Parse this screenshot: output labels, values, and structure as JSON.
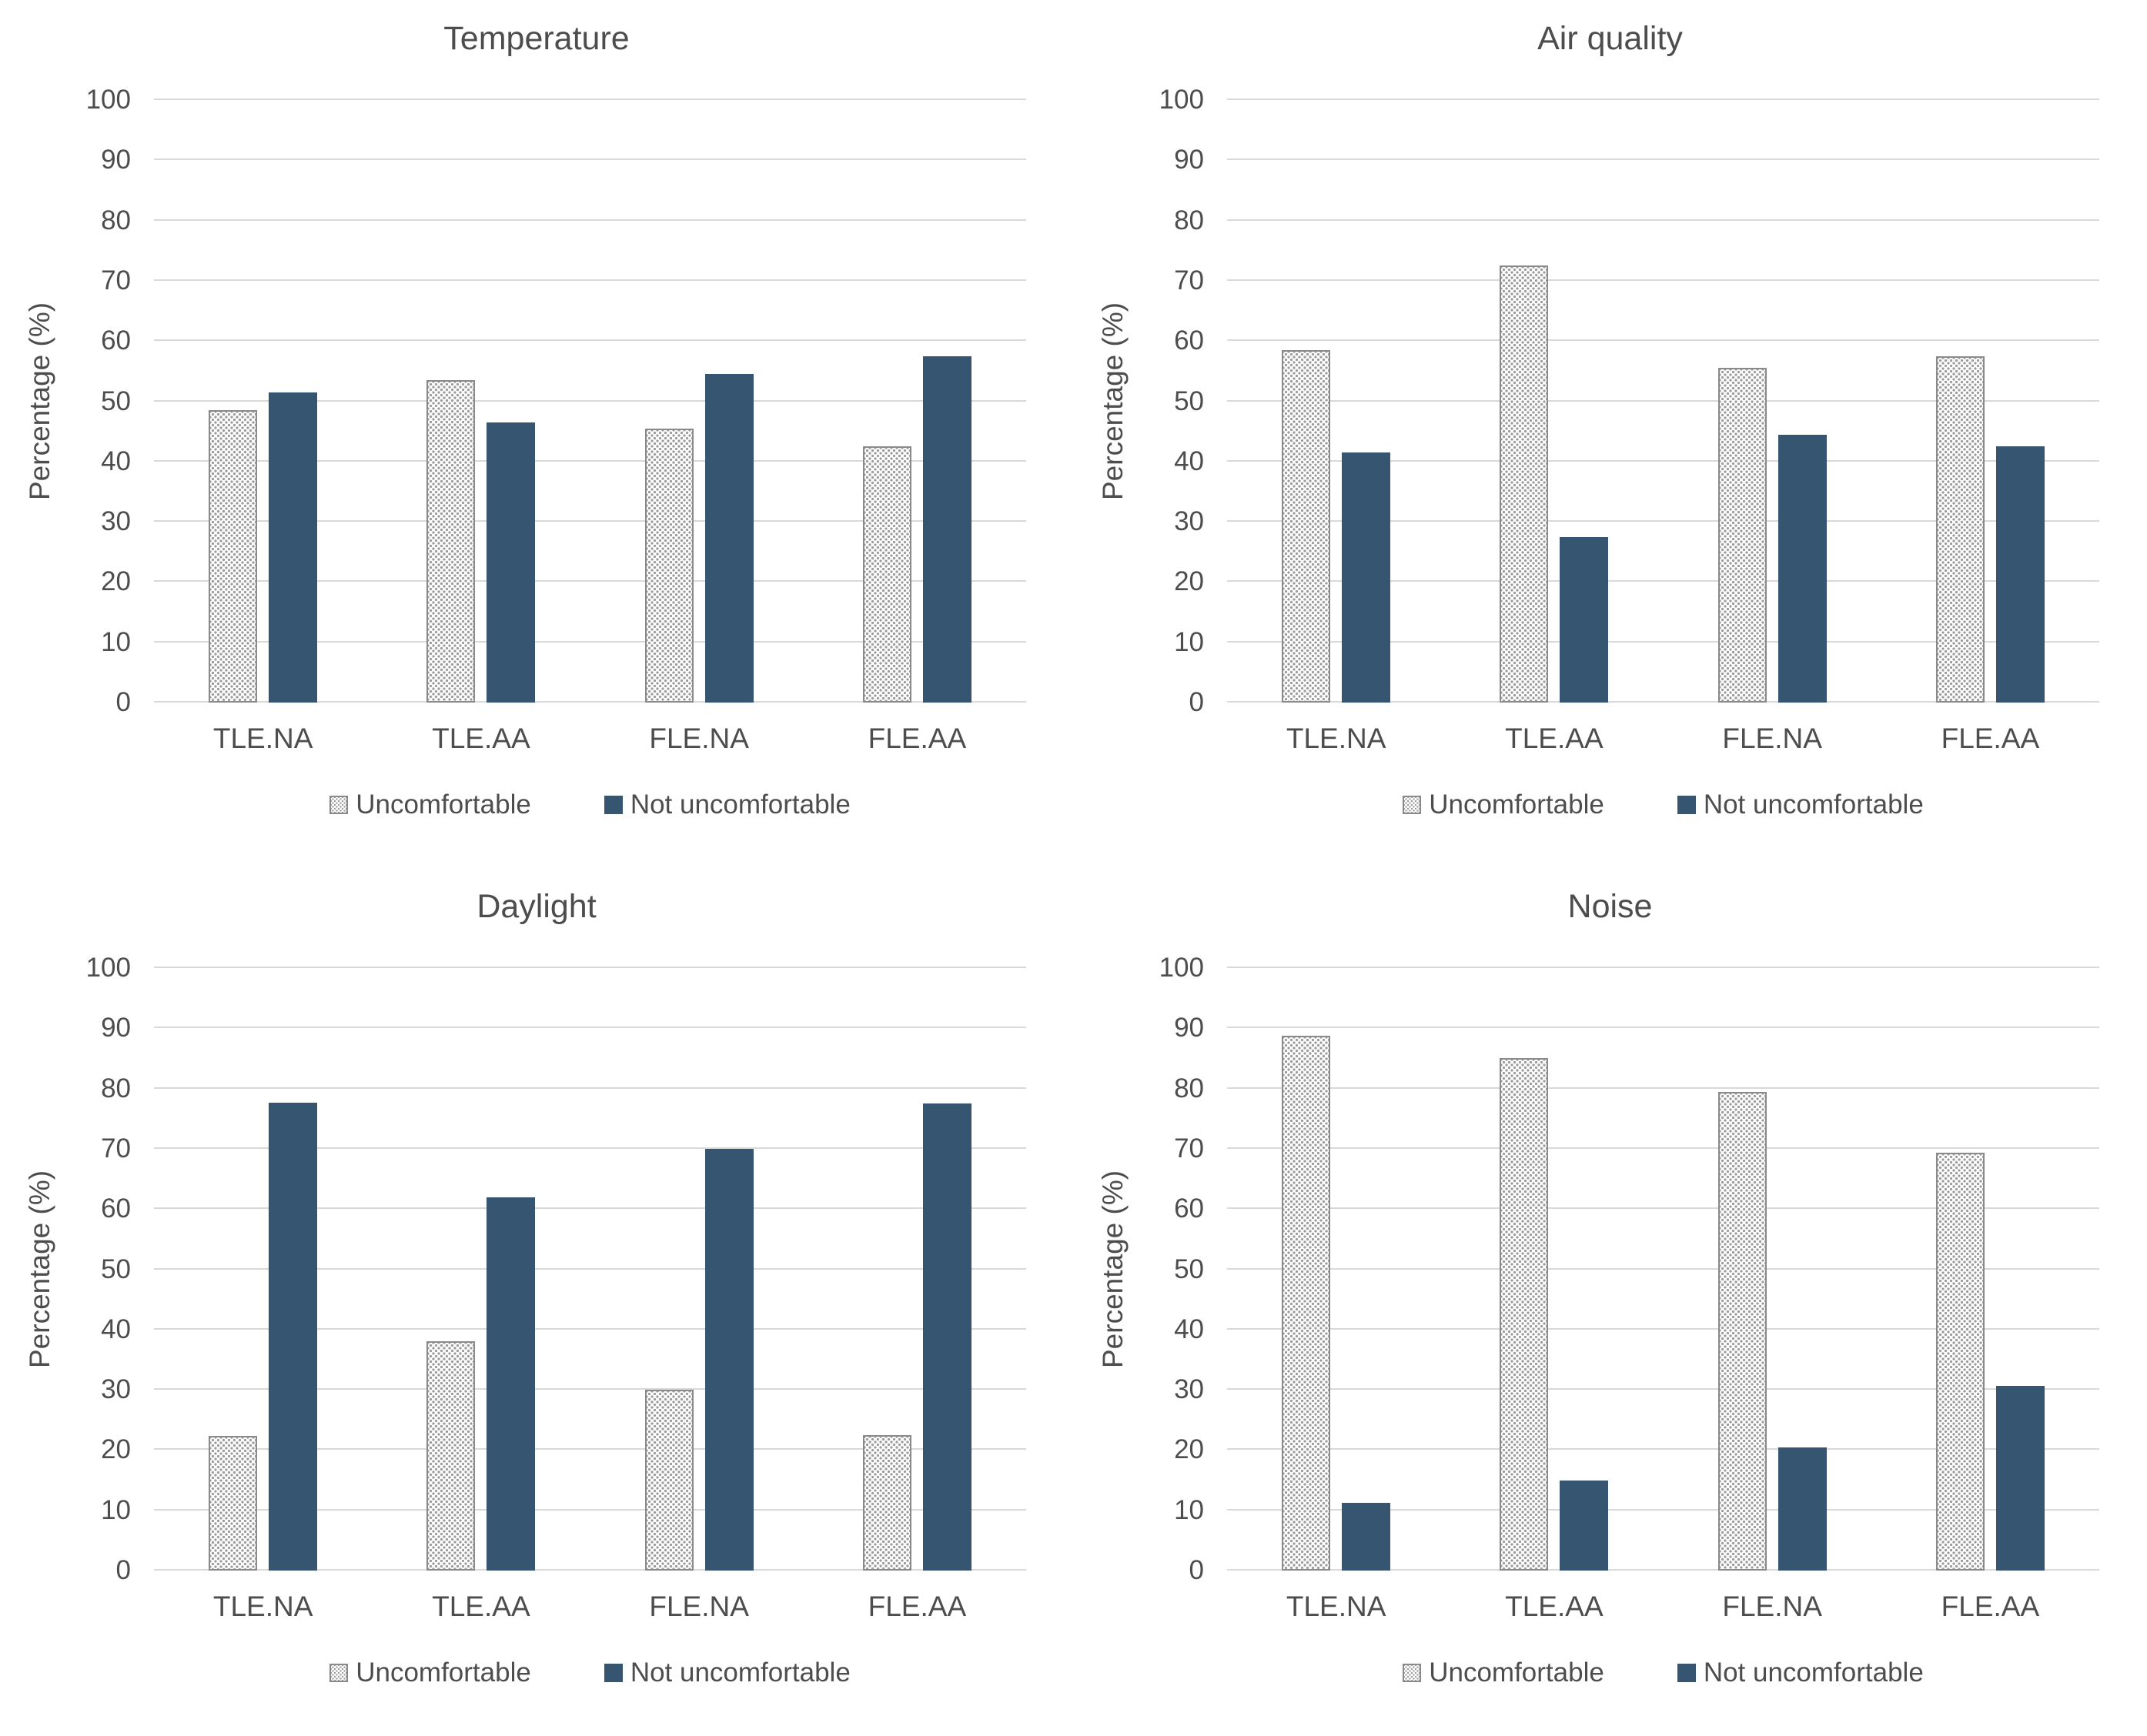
{
  "figure": {
    "background": "#ffffff",
    "layout": "2x2 grid of grouped bar charts"
  },
  "colors": {
    "bar_solid": "#365570",
    "bar_pattern_dot": "#9c9c9c",
    "bar_pattern_border": "#8a8a8a",
    "gridline": "#d9d9d9",
    "text": "#4d4d4d"
  },
  "chart_data": [
    {
      "type": "bar",
      "title": "Temperature",
      "xlabel": "",
      "ylabel": "Percentage (%)",
      "ylim": [
        0,
        100
      ],
      "ytick_step": 10,
      "grid": true,
      "legend_position": "bottom",
      "categories": [
        "TLE.NA",
        "TLE.AA",
        "FLE.NA",
        "FLE.AA"
      ],
      "series": [
        {
          "name": "Uncomfortable",
          "style": "pattern-dots",
          "values": [
            48.5,
            53.5,
            45.5,
            42.5
          ]
        },
        {
          "name": "Not uncomfortable",
          "style": "solid",
          "values": [
            51.5,
            46.5,
            54.5,
            57.5
          ]
        }
      ]
    },
    {
      "type": "bar",
      "title": "Air quality",
      "xlabel": "",
      "ylabel": "Percentage (%)",
      "ylim": [
        0,
        100
      ],
      "ytick_step": 10,
      "grid": true,
      "legend_position": "bottom",
      "categories": [
        "TLE.NA",
        "TLE.AA",
        "FLE.NA",
        "FLE.AA"
      ],
      "series": [
        {
          "name": "Uncomfortable",
          "style": "pattern-dots",
          "values": [
            58.5,
            72.5,
            55.5,
            57.5
          ]
        },
        {
          "name": "Not uncomfortable",
          "style": "solid",
          "values": [
            41.5,
            27.5,
            44.5,
            42.5
          ]
        }
      ]
    },
    {
      "type": "bar",
      "title": "Daylight",
      "xlabel": "",
      "ylabel": "Percentage (%)",
      "ylim": [
        0,
        100
      ],
      "ytick_step": 10,
      "grid": true,
      "legend_position": "bottom",
      "categories": [
        "TLE.NA",
        "TLE.AA",
        "FLE.NA",
        "FLE.AA"
      ],
      "series": [
        {
          "name": "Uncomfortable",
          "style": "pattern-dots",
          "values": [
            22.3,
            38.0,
            30.0,
            22.5
          ]
        },
        {
          "name": "Not uncomfortable",
          "style": "solid",
          "values": [
            77.7,
            62.0,
            70.0,
            77.5
          ]
        }
      ]
    },
    {
      "type": "bar",
      "title": "Noise",
      "xlabel": "",
      "ylabel": "Percentage (%)",
      "ylim": [
        0,
        100
      ],
      "ytick_step": 10,
      "grid": true,
      "legend_position": "bottom",
      "categories": [
        "TLE.NA",
        "TLE.AA",
        "FLE.NA",
        "FLE.AA"
      ],
      "series": [
        {
          "name": "Uncomfortable",
          "style": "pattern-dots",
          "values": [
            88.7,
            85.0,
            79.5,
            69.3
          ]
        },
        {
          "name": "Not uncomfortable",
          "style": "solid",
          "values": [
            11.3,
            15.0,
            20.5,
            30.7
          ]
        }
      ]
    }
  ]
}
